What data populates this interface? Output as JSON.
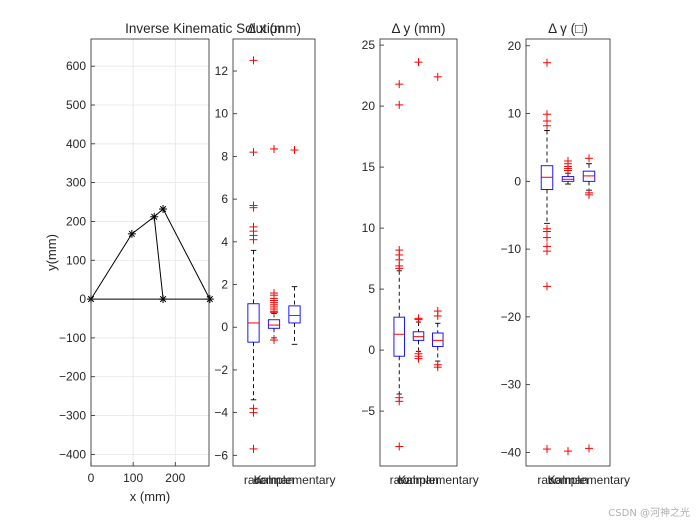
{
  "watermark": "CSDN @河神之光",
  "chart_data": [
    {
      "type": "line",
      "title": "Inverse Kinematic Solution",
      "xlabel": "x (mm)",
      "ylabel": "y(mm)",
      "xlim": [
        0,
        280
      ],
      "ylim": [
        -430,
        670
      ],
      "xticks": [
        0,
        100,
        200
      ],
      "yticks": [
        -400,
        -300,
        -200,
        -100,
        0,
        100,
        200,
        300,
        400,
        500,
        600
      ],
      "grid": true,
      "segments": [
        [
          [
            0,
            0
          ],
          [
            97,
            168
          ],
          [
            150,
            212
          ],
          [
            171,
            232
          ],
          [
            282,
            0
          ]
        ],
        [
          [
            0,
            0
          ],
          [
            282,
            0
          ]
        ],
        [
          [
            150,
            212
          ],
          [
            171,
            0
          ]
        ]
      ],
      "markers": [
        [
          0,
          0
        ],
        [
          97,
          168
        ],
        [
          150,
          212
        ],
        [
          171,
          232
        ],
        [
          171,
          0
        ],
        [
          282,
          0
        ]
      ],
      "marker": "asterisk"
    },
    {
      "type": "box",
      "title": "Δ x (mm)",
      "ylim": [
        -6.5,
        13.5
      ],
      "yticks": [
        -6,
        -4,
        -2,
        0,
        2,
        4,
        6,
        8,
        10,
        12
      ],
      "categories": [
        "raw",
        "Kalman",
        "complementary"
      ],
      "boxes": [
        {
          "q1": -0.7,
          "median": 0.2,
          "q3": 1.1,
          "whisker_low": -3.4,
          "whisker_high": 3.6,
          "outliers": [
            12.5,
            8.2,
            5.7,
            5.6,
            4.7,
            4.5,
            4.3,
            4.1,
            -3.8,
            -4.0,
            -5.7
          ]
        },
        {
          "q1": -0.05,
          "median": 0.1,
          "q3": 0.35,
          "whisker_low": -0.5,
          "whisker_high": 0.65,
          "outliers": [
            8.35,
            1.6,
            1.5,
            1.35,
            1.25,
            1.15,
            1.05,
            0.95,
            0.85,
            0.75,
            0.7,
            -0.6
          ]
        },
        {
          "q1": 0.2,
          "median": 0.55,
          "q3": 1.0,
          "whisker_low": -0.8,
          "whisker_high": 1.9,
          "outliers": [
            8.3
          ]
        }
      ]
    },
    {
      "type": "box",
      "title": "Δ y (mm)",
      "ylim": [
        -9.5,
        25.5
      ],
      "yticks": [
        -5,
        0,
        5,
        10,
        15,
        20,
        25
      ],
      "categories": [
        "raw",
        "Kalman",
        "complementary"
      ],
      "boxes": [
        {
          "q1": -0.5,
          "median": 1.3,
          "q3": 2.7,
          "whisker_low": -3.6,
          "whisker_high": 6.5,
          "outliers": [
            21.8,
            20.1,
            8.2,
            7.8,
            7.4,
            6.9,
            6.7,
            -3.9,
            -4.2,
            -7.9
          ]
        },
        {
          "q1": 0.8,
          "median": 1.1,
          "q3": 1.5,
          "whisker_low": -0.1,
          "whisker_high": 2.3,
          "outliers": [
            23.6,
            2.6,
            2.5,
            -0.3,
            -0.5,
            -0.7
          ]
        },
        {
          "q1": 0.3,
          "median": 0.8,
          "q3": 1.4,
          "whisker_low": -0.9,
          "whisker_high": 2.2,
          "outliers": [
            22.4,
            3.2,
            2.8,
            -1.2,
            -1.4
          ]
        }
      ]
    },
    {
      "type": "box",
      "title": "Δ γ (□)",
      "ylim": [
        -42,
        21
      ],
      "yticks": [
        -40,
        -30,
        -20,
        -10,
        0,
        10,
        20
      ],
      "categories": [
        "raw",
        "Kalman",
        "complementary"
      ],
      "boxes": [
        {
          "q1": -1.2,
          "median": 0.6,
          "q3": 2.3,
          "whisker_low": -6.2,
          "whisker_high": 7.5,
          "outliers": [
            17.5,
            9.9,
            8.9,
            8.2,
            -7.0,
            -7.4,
            -8.3,
            -9.6,
            -10.3,
            -15.5,
            -39.5
          ]
        },
        {
          "q1": 0.0,
          "median": 0.3,
          "q3": 0.7,
          "whisker_low": -0.4,
          "whisker_high": 1.2,
          "outliers": [
            3.0,
            2.6,
            2.2,
            1.9,
            1.6,
            -39.8
          ]
        },
        {
          "q1": 0.0,
          "median": 0.8,
          "q3": 1.5,
          "whisker_low": -1.3,
          "whisker_high": 2.6,
          "outliers": [
            3.4,
            -1.7,
            -2.0,
            -39.4
          ]
        }
      ]
    }
  ]
}
